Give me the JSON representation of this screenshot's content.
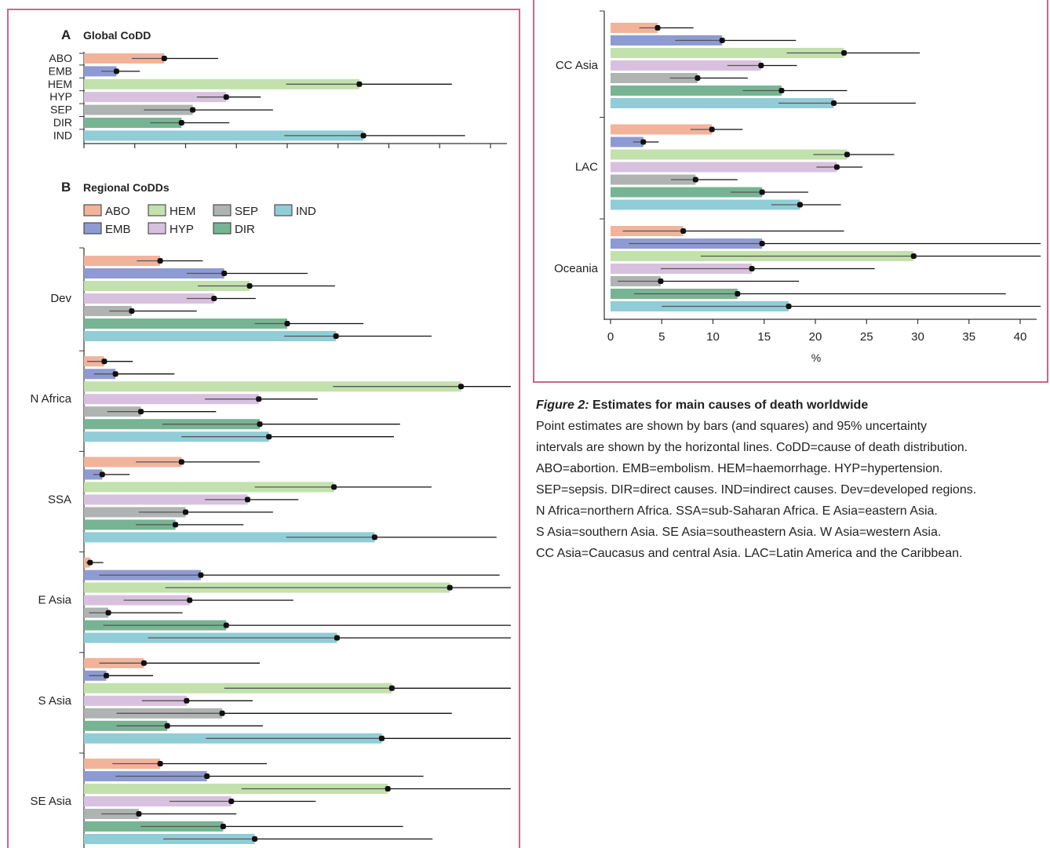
{
  "colors": {
    "ABO": "#f2b39b",
    "EMB": "#8e9bd2",
    "HEM": "#c3e1ad",
    "HYP": "#d8c1de",
    "SEP": "#afb3b2",
    "DIR": "#77b493",
    "IND": "#91cdd6",
    "frame": "#c9688c"
  },
  "legend": {
    "row1": [
      {
        "key": "ABO",
        "label": "ABO"
      },
      {
        "key": "HEM",
        "label": "HEM"
      },
      {
        "key": "SEP",
        "label": "SEP"
      },
      {
        "key": "IND",
        "label": "IND"
      }
    ],
    "row2": [
      {
        "key": "EMB",
        "label": "EMB"
      },
      {
        "key": "HYP",
        "label": "HYP"
      },
      {
        "key": "DIR",
        "label": "DIR"
      }
    ]
  },
  "caption": {
    "label": "Figure 2:",
    "title": " Estimates for main causes of death worldwide",
    "lines": [
      "Point estimates are shown by bars (and squares) and 95% uncertainty",
      "intervals are shown by the horizontal lines. CoDD=cause of death distribution.",
      "ABO=abortion. EMB=embolism. HEM=haemorrhage. HYP=hypertension.",
      "SEP=sepsis. DIR=direct causes. IND=indirect causes. Dev=developed regions.",
      "N Africa=northern Africa. SSA=sub-Saharan Africa. E Asia=eastern Asia.",
      "S Asia=southern Asia. SE Asia=southeastern Asia. W Asia=western Asia.",
      "CC Asia=Caucasus and central Asia. LAC=Latin America and the Caribbean."
    ]
  },
  "chart_data": [
    {
      "type": "bar",
      "orientation": "horizontal",
      "panel_letter": "A",
      "title": "Global CoDD",
      "categories": [
        "ABO",
        "EMB",
        "HEM",
        "HYP",
        "SEP",
        "DIR",
        "IND"
      ],
      "values": [
        7.9,
        3.2,
        27.1,
        14.0,
        10.7,
        9.6,
        27.5
      ],
      "ci": [
        [
          4.7,
          13.2
        ],
        [
          1.7,
          5.5
        ],
        [
          19.9,
          36.2
        ],
        [
          11.1,
          17.4
        ],
        [
          5.9,
          18.6
        ],
        [
          6.5,
          14.3
        ],
        [
          19.7,
          37.5
        ]
      ],
      "xlim": [
        0,
        42
      ],
      "grid": false
    },
    {
      "type": "bar",
      "orientation": "horizontal",
      "panel_letter": "B",
      "title": "Regional CoDDs",
      "series_keys": [
        "ABO",
        "EMB",
        "HEM",
        "HYP",
        "SEP",
        "DIR",
        "IND"
      ],
      "xlim": [
        0,
        42
      ],
      "xlabel": "%",
      "xticks": [
        0,
        5,
        10,
        15,
        20,
        25,
        30,
        35,
        40
      ],
      "grid": false,
      "legend": "top-left",
      "regions": [
        {
          "name": "Dev",
          "values": [
            7.5,
            13.8,
            16.3,
            12.8,
            4.7,
            20.0,
            24.8
          ],
          "ci": [
            [
              5.2,
              11.7
            ],
            [
              10.1,
              22.0
            ],
            [
              11.2,
              24.7
            ],
            [
              10.1,
              16.9
            ],
            [
              2.5,
              11.1
            ],
            [
              16.8,
              27.5
            ],
            [
              19.7,
              34.2
            ]
          ]
        },
        {
          "name": "N Africa",
          "values": [
            2.0,
            3.1,
            37.1,
            17.2,
            5.6,
            17.3,
            18.2
          ],
          "ci": [
            [
              0.3,
              4.8
            ],
            [
              1.0,
              8.9
            ],
            [
              24.5,
              42.0
            ],
            [
              11.9,
              23.0
            ],
            [
              2.3,
              13.0
            ],
            [
              7.7,
              31.1
            ],
            [
              9.6,
              30.5
            ]
          ]
        },
        {
          "name": "SSA",
          "values": [
            9.6,
            1.8,
            24.6,
            16.1,
            10.0,
            9.0,
            28.6
          ],
          "ci": [
            [
              5.1,
              17.3
            ],
            [
              0.9,
              4.5
            ],
            [
              16.8,
              34.2
            ],
            [
              11.9,
              21.1
            ],
            [
              5.4,
              18.6
            ],
            [
              5.1,
              15.7
            ],
            [
              19.9,
              40.6
            ]
          ]
        },
        {
          "name": "E Asia",
          "values": [
            0.6,
            11.5,
            36.0,
            10.4,
            2.4,
            14.0,
            24.9
          ],
          "ci": [
            [
              0.2,
              1.9
            ],
            [
              1.5,
              40.9
            ],
            [
              8.0,
              42.0
            ],
            [
              3.9,
              20.6
            ],
            [
              0.5,
              9.7
            ],
            [
              1.9,
              42.0
            ],
            [
              6.3,
              42.0
            ]
          ]
        },
        {
          "name": "S Asia",
          "values": [
            5.9,
            2.2,
            30.3,
            10.1,
            13.6,
            8.2,
            29.3
          ],
          "ci": [
            [
              1.5,
              17.3
            ],
            [
              0.5,
              6.8
            ],
            [
              13.8,
              42.0
            ],
            [
              5.7,
              16.6
            ],
            [
              3.2,
              36.2
            ],
            [
              3.2,
              17.6
            ],
            [
              12.0,
              42.0
            ]
          ]
        },
        {
          "name": "SE Asia",
          "values": [
            7.5,
            12.1,
            29.9,
            14.5,
            5.4,
            13.7,
            16.8
          ],
          "ci": [
            [
              2.8,
              18.0
            ],
            [
              3.1,
              33.4
            ],
            [
              15.5,
              42.0
            ],
            [
              8.4,
              22.8
            ],
            [
              1.7,
              15.0
            ],
            [
              5.6,
              31.4
            ],
            [
              7.8,
              34.3
            ]
          ]
        },
        {
          "name": "CC Asia",
          "values": [
            4.6,
            10.9,
            22.8,
            14.7,
            8.5,
            16.7,
            21.8
          ],
          "ci": [
            [
              2.8,
              8.1
            ],
            [
              6.3,
              18.1
            ],
            [
              17.2,
              30.2
            ],
            [
              11.4,
              18.2
            ],
            [
              5.8,
              13.4
            ],
            [
              12.9,
              23.1
            ],
            [
              16.4,
              29.8
            ]
          ]
        },
        {
          "name": "LAC",
          "values": [
            9.9,
            3.2,
            23.1,
            22.1,
            8.3,
            14.8,
            18.5
          ],
          "ci": [
            [
              7.8,
              12.9
            ],
            [
              2.2,
              4.7
            ],
            [
              19.8,
              27.7
            ],
            [
              20.1,
              24.6
            ],
            [
              5.9,
              12.4
            ],
            [
              11.7,
              19.3
            ],
            [
              15.7,
              22.5
            ]
          ]
        },
        {
          "name": "Oceania",
          "values": [
            7.1,
            14.8,
            29.6,
            13.8,
            4.9,
            12.4,
            17.4
          ],
          "ci": [
            [
              1.2,
              22.8
            ],
            [
              1.8,
              42.0
            ],
            [
              8.8,
              42.0
            ],
            [
              4.9,
              25.8
            ],
            [
              0.7,
              18.4
            ],
            [
              2.3,
              38.6
            ],
            [
              5.0,
              42.0
            ]
          ]
        }
      ]
    }
  ]
}
